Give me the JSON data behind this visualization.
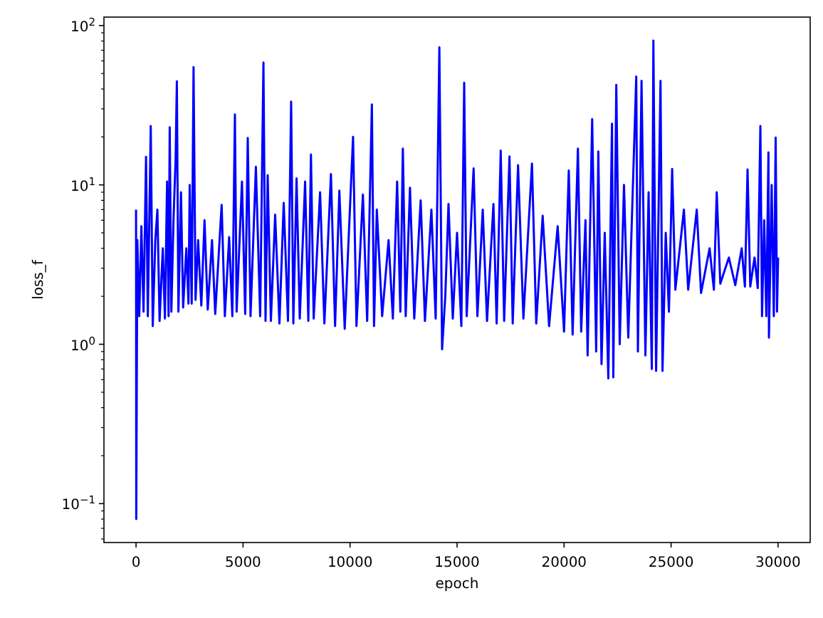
{
  "chart_data": {
    "type": "line",
    "xlabel": "epoch",
    "ylabel": "loss_f",
    "log": "y",
    "grid": false,
    "marker": "none",
    "line_style": "solid",
    "xlim": [
      -1500,
      31500
    ],
    "xticks": [
      0,
      5000,
      10000,
      15000,
      20000,
      25000,
      30000
    ],
    "ylim": [
      0.057,
      113
    ],
    "yticks": [
      {
        "value": 0.1,
        "label": "10$^{−1}$"
      },
      {
        "value": 1,
        "label": "10$^{0}$"
      },
      {
        "value": 10,
        "label": "10$^{1}$"
      },
      {
        "value": 100,
        "label": "10$^{2}$"
      },
      {
        "value": 0.06,
        "label": null
      },
      {
        "value": 0.07,
        "label": null
      },
      {
        "value": 0.08,
        "label": null
      },
      {
        "value": 0.09,
        "label": null
      },
      {
        "value": 0.2,
        "label": null
      },
      {
        "value": 0.3,
        "label": null
      },
      {
        "value": 0.4,
        "label": null
      },
      {
        "value": 0.5,
        "label": null
      },
      {
        "value": 0.6,
        "label": null
      },
      {
        "value": 0.7,
        "label": null
      },
      {
        "value": 0.8,
        "label": null
      },
      {
        "value": 0.9,
        "label": null
      },
      {
        "value": 2,
        "label": null
      },
      {
        "value": 3,
        "label": null
      },
      {
        "value": 4,
        "label": null
      },
      {
        "value": 5,
        "label": null
      },
      {
        "value": 6,
        "label": null
      },
      {
        "value": 7,
        "label": null
      },
      {
        "value": 8,
        "label": null
      },
      {
        "value": 9,
        "label": null
      },
      {
        "value": 20,
        "label": null
      },
      {
        "value": 30,
        "label": null
      },
      {
        "value": 40,
        "label": null
      },
      {
        "value": 50,
        "label": null
      },
      {
        "value": 60,
        "label": null
      },
      {
        "value": 70,
        "label": null
      },
      {
        "value": 80,
        "label": null
      },
      {
        "value": 90,
        "label": null
      }
    ],
    "x": [
      0,
      10,
      60,
      150,
      250,
      350,
      467,
      550,
      687,
      780,
      900,
      998,
      1100,
      1250,
      1350,
      1450,
      1520,
      1573,
      1650,
      1750,
      1850,
      1907,
      1980,
      2100,
      2200,
      2350,
      2450,
      2507,
      2600,
      2687,
      2780,
      2900,
      3050,
      3200,
      3350,
      3550,
      3700,
      4000,
      4150,
      4350,
      4500,
      4620,
      4700,
      4950,
      5100,
      5220,
      5350,
      5600,
      5800,
      5953,
      6050,
      6150,
      6300,
      6500,
      6700,
      6900,
      7100,
      7247,
      7350,
      7500,
      7650,
      7900,
      8050,
      8173,
      8300,
      8600,
      8800,
      9107,
      9300,
      9500,
      9750,
      10140,
      10300,
      10600,
      10800,
      11020,
      11120,
      11250,
      11500,
      11800,
      12000,
      12200,
      12350,
      12467,
      12600,
      12800,
      13000,
      13300,
      13500,
      13800,
      14000,
      14173,
      14300,
      14450,
      14600,
      14800,
      15000,
      15200,
      15333,
      15450,
      15773,
      15950,
      16200,
      16400,
      16700,
      16850,
      17040,
      17200,
      17450,
      17600,
      17850,
      18100,
      18500,
      18700,
      19000,
      19300,
      19700,
      20000,
      20220,
      20400,
      20647,
      20800,
      21000,
      21100,
      21313,
      21500,
      21600,
      21750,
      21900,
      22067,
      22240,
      22300,
      22440,
      22600,
      22800,
      23000,
      23373,
      23450,
      23620,
      23800,
      23950,
      24100,
      24173,
      24300,
      24507,
      24600,
      24750,
      24900,
      25050,
      25200,
      25600,
      25800,
      26200,
      26400,
      26800,
      27000,
      27133,
      27300,
      27700,
      28000,
      28300,
      28450,
      28573,
      28700,
      28900,
      29050,
      29173,
      29250,
      29350,
      29450,
      29550,
      29573,
      29700,
      29800,
      29887,
      29950,
      30000
    ],
    "series": [
      {
        "color": "#0000ff",
        "values": [
          7,
          0.08,
          4.5,
          1.5,
          5.5,
          1.6,
          15,
          1.5,
          23.4,
          1.3,
          4.5,
          7,
          1.4,
          4,
          1.45,
          10.5,
          1.5,
          23,
          1.6,
          6,
          14.7,
          44.7,
          1.6,
          9,
          1.7,
          4,
          1.8,
          10,
          1.8,
          54.8,
          1.9,
          4.5,
          1.75,
          6,
          1.65,
          4.5,
          1.55,
          7.5,
          1.5,
          4.7,
          1.5,
          27.7,
          1.6,
          10.5,
          1.55,
          19.7,
          1.5,
          13,
          1.5,
          58.7,
          1.4,
          11.5,
          1.4,
          6.5,
          1.35,
          7.7,
          1.4,
          33.3,
          1.35,
          11,
          1.45,
          10.5,
          1.4,
          15.5,
          1.45,
          9,
          1.35,
          11.7,
          1.3,
          9.2,
          1.25,
          20,
          1.3,
          8.7,
          1.4,
          32,
          1.3,
          7,
          1.5,
          4.5,
          1.45,
          10.5,
          1.6,
          16.9,
          1.5,
          9.6,
          1.45,
          8,
          1.4,
          7,
          1.45,
          73,
          0.93,
          2,
          7.6,
          1.45,
          5,
          1.3,
          43.8,
          1.5,
          12.7,
          1.5,
          7,
          1.4,
          7.6,
          1.35,
          16.4,
          1.4,
          15.1,
          1.35,
          13.3,
          1.45,
          13.6,
          1.35,
          6.4,
          1.3,
          5.5,
          1.2,
          12.3,
          1.15,
          16.9,
          1.2,
          6,
          0.85,
          25.9,
          0.9,
          16.2,
          0.75,
          5,
          0.61,
          24.2,
          0.62,
          42.4,
          1.0,
          10,
          1.1,
          47.9,
          0.9,
          45,
          0.85,
          9,
          0.7,
          80.5,
          0.68,
          45,
          0.68,
          5,
          1.6,
          12.6,
          2.2,
          7,
          2.2,
          7,
          2.1,
          4,
          2.2,
          9,
          2.4,
          3.5,
          2.35,
          4,
          2.3,
          12.5,
          2.3,
          3.5,
          2.25,
          23.4,
          1.5,
          6,
          1.5,
          16,
          1.1,
          10,
          1.5,
          19.8,
          1.6,
          3.5
        ]
      }
    ]
  }
}
